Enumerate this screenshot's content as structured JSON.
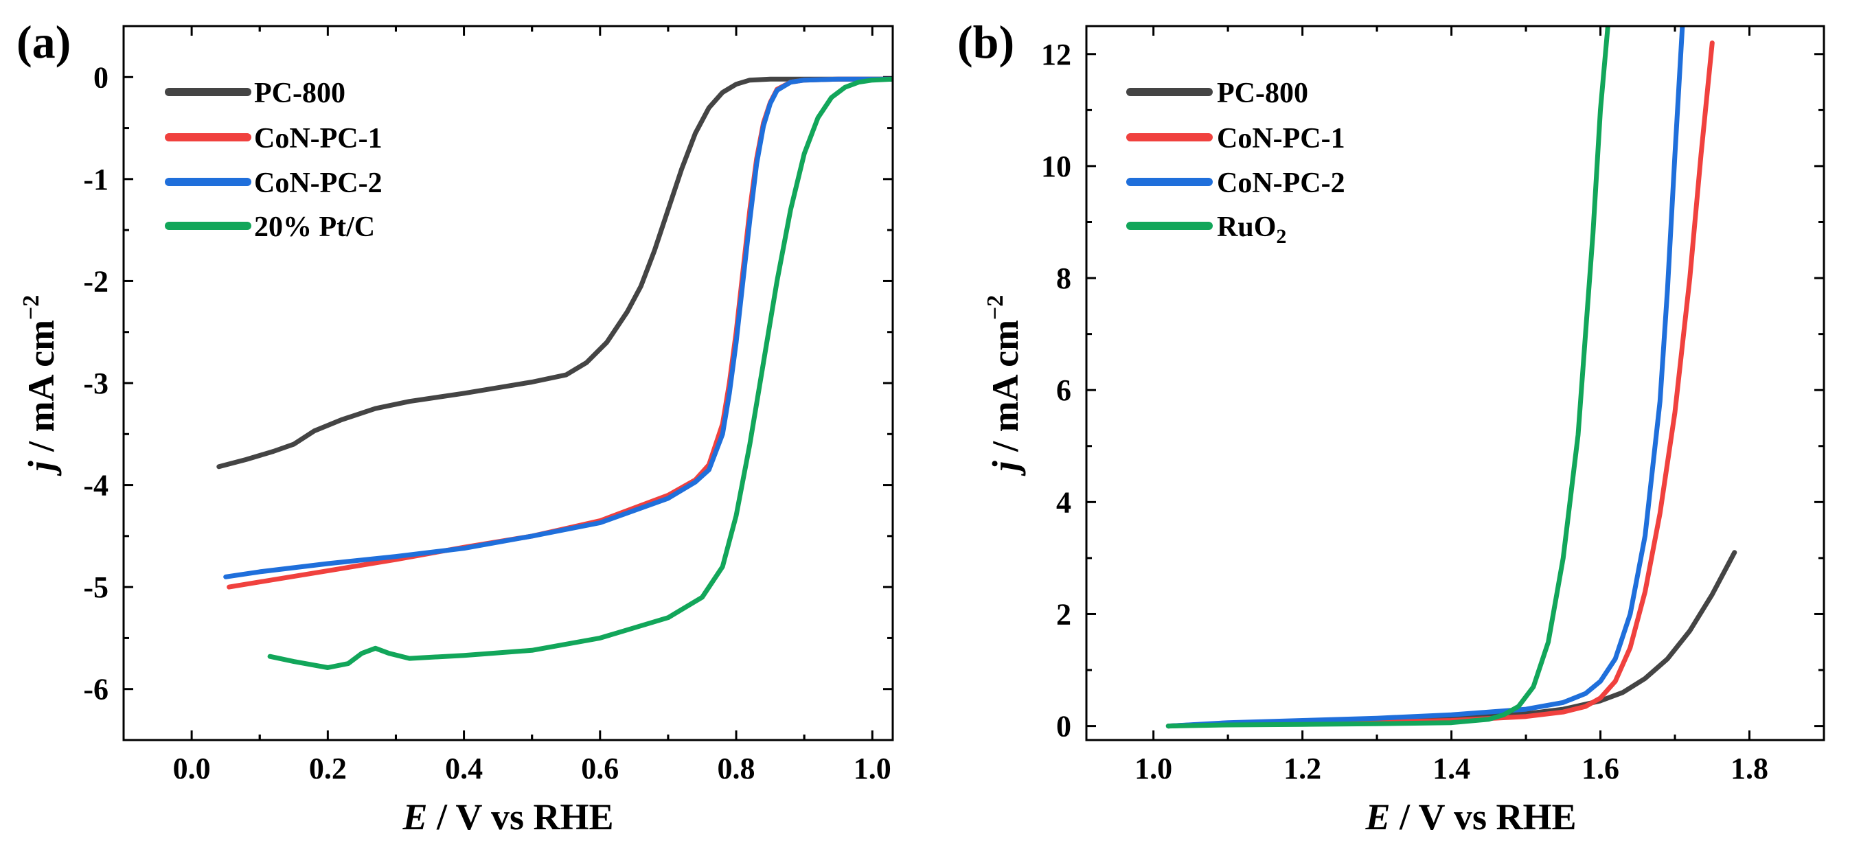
{
  "colors": {
    "PC-800": "#444444",
    "CoN-PC-1": "#f0413e",
    "CoN-PC-2": "#1f6fdb",
    "green": "#12a65a"
  },
  "chart_data": [
    {
      "id": "a",
      "type": "line",
      "panel_label": "(a)",
      "xlabel": {
        "italic": "E",
        "rest": " / V vs RHE"
      },
      "ylabel": {
        "italic": "j",
        "rest": " / mA cm",
        "sup": "−2"
      },
      "xlim": [
        -0.1,
        1.03
      ],
      "ylim": [
        -6.5,
        0.5
      ],
      "xticks": [
        0.0,
        0.2,
        0.4,
        0.6,
        0.8,
        1.0
      ],
      "xtick_labels": [
        "0.0",
        "0.2",
        "0.4",
        "0.6",
        "0.8",
        "1.0"
      ],
      "yticks": [
        0,
        -1,
        -2,
        -3,
        -4,
        -5,
        -6
      ],
      "ytick_labels": [
        "0",
        "-1",
        "-2",
        "-3",
        "-4",
        "-5",
        "-6"
      ],
      "legend_position": "top-left",
      "series": [
        {
          "name": "PC-800",
          "label": "PC-800",
          "color": "#444444",
          "x": [
            0.04,
            0.08,
            0.12,
            0.15,
            0.18,
            0.22,
            0.27,
            0.32,
            0.4,
            0.5,
            0.55,
            0.58,
            0.61,
            0.64,
            0.66,
            0.68,
            0.7,
            0.72,
            0.74,
            0.76,
            0.78,
            0.8,
            0.82,
            0.85,
            0.9,
            1.03
          ],
          "values": [
            -3.82,
            -3.75,
            -3.67,
            -3.6,
            -3.47,
            -3.36,
            -3.25,
            -3.18,
            -3.1,
            -2.99,
            -2.92,
            -2.8,
            -2.6,
            -2.3,
            -2.05,
            -1.7,
            -1.3,
            -0.9,
            -0.55,
            -0.3,
            -0.15,
            -0.07,
            -0.03,
            -0.02,
            -0.02,
            -0.02
          ]
        },
        {
          "name": "CoN-PC-1",
          "label": "CoN-PC-1",
          "color": "#f0413e",
          "x": [
            0.055,
            0.1,
            0.2,
            0.3,
            0.4,
            0.5,
            0.6,
            0.7,
            0.74,
            0.76,
            0.78,
            0.79,
            0.8,
            0.81,
            0.82,
            0.83,
            0.84,
            0.85,
            0.86,
            0.88,
            0.9,
            0.95,
            1.03
          ],
          "values": [
            -5.0,
            -4.95,
            -4.84,
            -4.73,
            -4.61,
            -4.5,
            -4.35,
            -4.1,
            -3.95,
            -3.8,
            -3.4,
            -3.0,
            -2.5,
            -1.9,
            -1.3,
            -0.8,
            -0.45,
            -0.25,
            -0.12,
            -0.05,
            -0.03,
            -0.02,
            -0.02
          ]
        },
        {
          "name": "CoN-PC-2",
          "label": "CoN-PC-2",
          "color": "#1f6fdb",
          "x": [
            0.05,
            0.1,
            0.2,
            0.3,
            0.4,
            0.5,
            0.6,
            0.7,
            0.74,
            0.76,
            0.78,
            0.79,
            0.8,
            0.81,
            0.82,
            0.83,
            0.84,
            0.85,
            0.86,
            0.88,
            0.9,
            0.95,
            1.03
          ],
          "values": [
            -4.9,
            -4.85,
            -4.77,
            -4.7,
            -4.62,
            -4.5,
            -4.37,
            -4.13,
            -3.97,
            -3.85,
            -3.5,
            -3.1,
            -2.6,
            -2.0,
            -1.4,
            -0.85,
            -0.48,
            -0.26,
            -0.13,
            -0.05,
            -0.03,
            -0.02,
            -0.02
          ]
        },
        {
          "name": "20% Pt/C",
          "label": "20% Pt/C",
          "color": "#12a65a",
          "x": [
            0.115,
            0.15,
            0.2,
            0.23,
            0.25,
            0.27,
            0.29,
            0.32,
            0.4,
            0.5,
            0.6,
            0.7,
            0.75,
            0.78,
            0.8,
            0.82,
            0.84,
            0.86,
            0.88,
            0.9,
            0.92,
            0.94,
            0.96,
            0.98,
            1.0,
            1.03
          ],
          "values": [
            -5.68,
            -5.73,
            -5.79,
            -5.75,
            -5.65,
            -5.6,
            -5.65,
            -5.7,
            -5.67,
            -5.62,
            -5.5,
            -5.3,
            -5.1,
            -4.8,
            -4.3,
            -3.6,
            -2.8,
            -2.0,
            -1.3,
            -0.75,
            -0.4,
            -0.2,
            -0.1,
            -0.05,
            -0.03,
            -0.02
          ]
        }
      ]
    },
    {
      "id": "b",
      "type": "line",
      "panel_label": "(b)",
      "xlabel": {
        "italic": "E",
        "rest": " / V vs RHE"
      },
      "ylabel": {
        "italic": "j",
        "rest": " / mA cm",
        "sup": "−2"
      },
      "xlim": [
        0.91,
        1.9
      ],
      "ylim": [
        -0.25,
        12.5
      ],
      "xticks": [
        1.0,
        1.2,
        1.4,
        1.6,
        1.8
      ],
      "xtick_labels": [
        "1.0",
        "1.2",
        "1.4",
        "1.6",
        "1.8"
      ],
      "yticks": [
        0,
        2,
        4,
        6,
        8,
        10,
        12
      ],
      "ytick_labels": [
        "0",
        "2",
        "4",
        "6",
        "8",
        "10",
        "12"
      ],
      "legend_position": "top-left",
      "series": [
        {
          "name": "PC-800",
          "label": "PC-800",
          "color": "#444444",
          "x": [
            1.02,
            1.1,
            1.2,
            1.3,
            1.4,
            1.5,
            1.55,
            1.6,
            1.63,
            1.66,
            1.69,
            1.72,
            1.75,
            1.78
          ],
          "values": [
            0.0,
            0.05,
            0.08,
            0.1,
            0.14,
            0.22,
            0.3,
            0.45,
            0.6,
            0.85,
            1.2,
            1.7,
            2.35,
            3.1
          ]
        },
        {
          "name": "CoN-PC-1",
          "label": "CoN-PC-1",
          "color": "#f0413e",
          "x": [
            1.02,
            1.1,
            1.2,
            1.3,
            1.4,
            1.5,
            1.55,
            1.58,
            1.6,
            1.62,
            1.64,
            1.66,
            1.68,
            1.7,
            1.72,
            1.735,
            1.75
          ],
          "values": [
            0.0,
            0.04,
            0.06,
            0.07,
            0.1,
            0.17,
            0.25,
            0.35,
            0.5,
            0.8,
            1.4,
            2.4,
            3.8,
            5.6,
            8.0,
            10.2,
            12.2
          ]
        },
        {
          "name": "CoN-PC-2",
          "label": "CoN-PC-2",
          "color": "#1f6fdb",
          "x": [
            1.02,
            1.1,
            1.2,
            1.3,
            1.4,
            1.5,
            1.55,
            1.58,
            1.6,
            1.62,
            1.64,
            1.66,
            1.68,
            1.69,
            1.7,
            1.71
          ],
          "values": [
            0.0,
            0.06,
            0.1,
            0.14,
            0.2,
            0.3,
            0.42,
            0.58,
            0.8,
            1.2,
            2.0,
            3.4,
            5.8,
            7.8,
            10.2,
            12.5
          ]
        },
        {
          "name": "RuO2",
          "label": "RuO",
          "label_sub": "2",
          "color": "#12a65a",
          "x": [
            1.02,
            1.1,
            1.2,
            1.3,
            1.4,
            1.45,
            1.47,
            1.49,
            1.51,
            1.53,
            1.55,
            1.57,
            1.58,
            1.59,
            1.6,
            1.61
          ],
          "values": [
            0.0,
            0.02,
            0.03,
            0.04,
            0.06,
            0.12,
            0.2,
            0.35,
            0.7,
            1.5,
            3.0,
            5.2,
            7.0,
            8.8,
            11.0,
            12.5
          ]
        }
      ]
    }
  ]
}
